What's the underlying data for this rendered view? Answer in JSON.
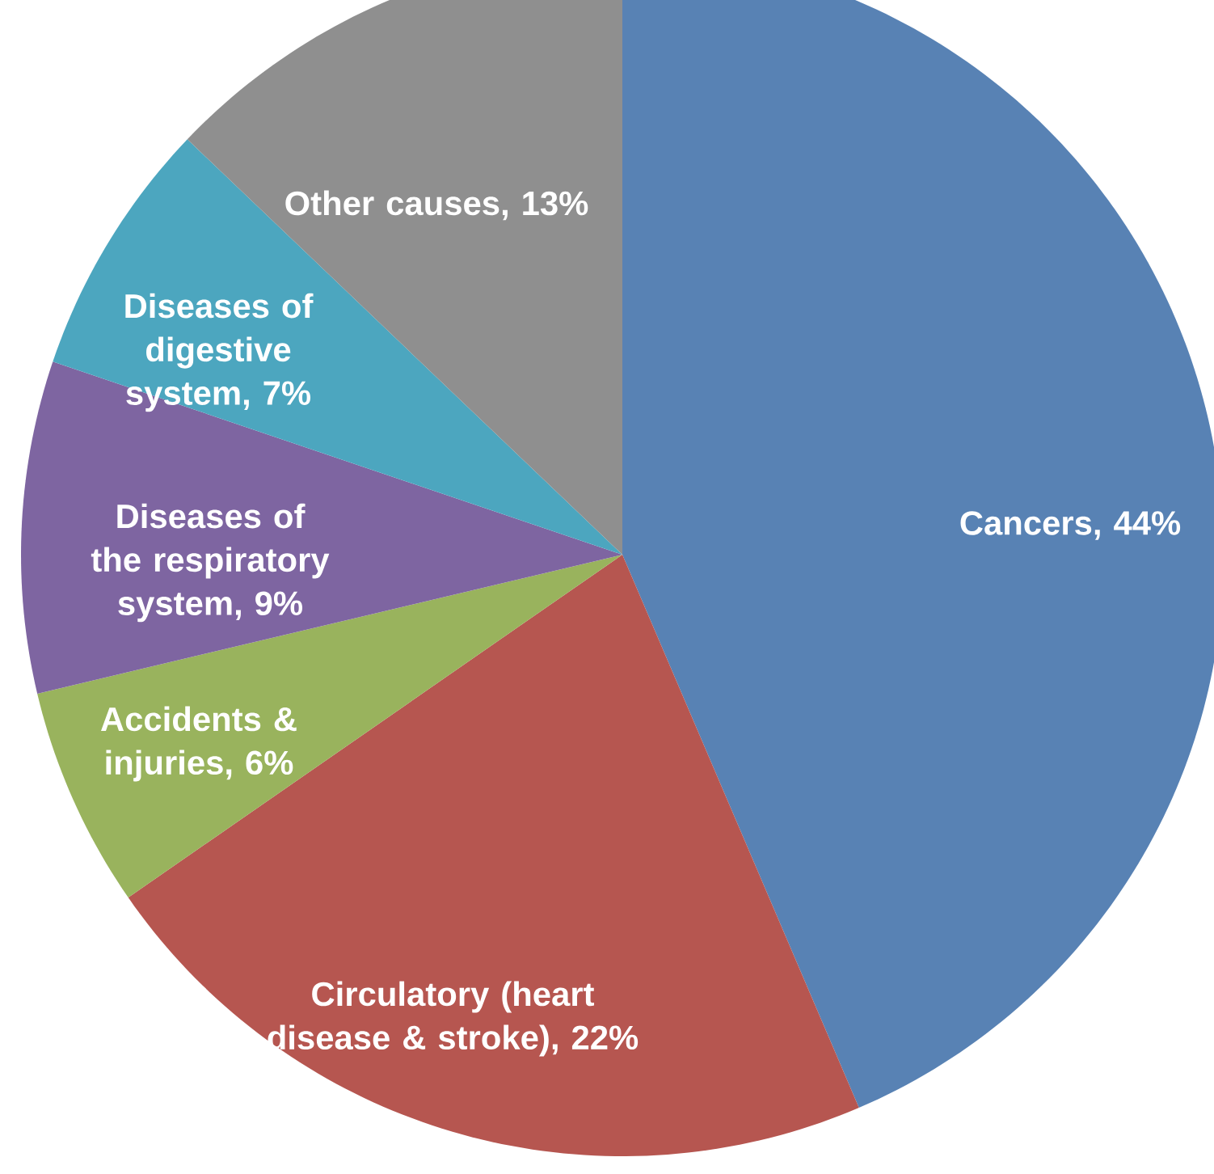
{
  "chart_data": {
    "type": "pie",
    "categories": [
      "Cancers",
      "Circulatory (heart disease & stroke)",
      "Accidents & injuries",
      "Diseases of the respiratory system",
      "Diseases of digestive system",
      "Other causes"
    ],
    "values": [
      44,
      22,
      6,
      9,
      7,
      13
    ],
    "colors": [
      "#5882b4",
      "#b65650",
      "#99b35d",
      "#7e65a1",
      "#4ca6bf",
      "#8f8f8f"
    ],
    "value_labels": [
      ", 44%",
      ", 22%",
      ", 6%",
      ", 9%",
      ", 7%",
      ",  13%"
    ]
  }
}
